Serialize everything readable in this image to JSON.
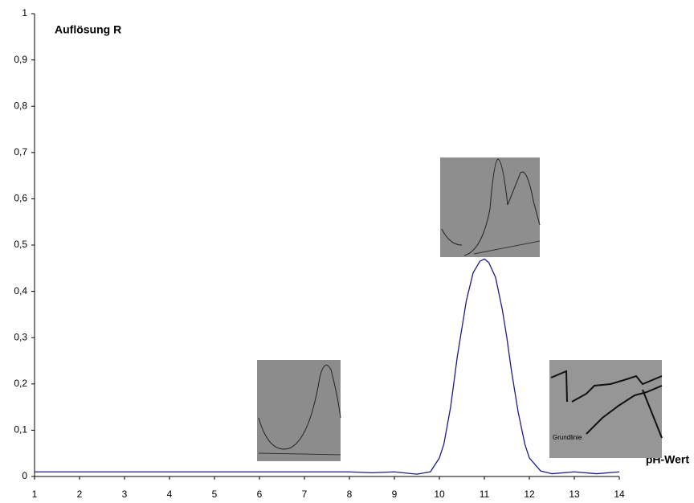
{
  "chart_data": {
    "type": "line",
    "y_label": "Auflösung R",
    "x_label": "pH-Wert",
    "x": [
      1,
      2,
      3,
      4,
      5,
      6,
      7,
      8,
      8.5,
      9,
      9.5,
      9.8,
      10,
      10.1,
      10.25,
      10.4,
      10.5,
      10.6,
      10.75,
      10.9,
      11,
      11.1,
      11.25,
      11.4,
      11.5,
      11.6,
      11.75,
      11.9,
      12,
      12.25,
      12.5,
      13,
      13.5,
      14
    ],
    "values": [
      0.01,
      0.01,
      0.01,
      0.01,
      0.01,
      0.01,
      0.01,
      0.01,
      0.008,
      0.01,
      0.005,
      0.01,
      0.04,
      0.07,
      0.15,
      0.26,
      0.32,
      0.38,
      0.44,
      0.465,
      0.47,
      0.462,
      0.43,
      0.36,
      0.3,
      0.23,
      0.14,
      0.07,
      0.04,
      0.012,
      0.006,
      0.01,
      0.006,
      0.01
    ],
    "color": "#1c1c8a",
    "xlim": [
      1,
      14
    ],
    "ylim": [
      0,
      1
    ],
    "xticks": [
      1,
      2,
      3,
      4,
      5,
      6,
      7,
      8,
      9,
      10,
      11,
      12,
      13,
      14
    ],
    "yticks": [
      0,
      {
        "value": 0.1,
        "label": "0,1"
      },
      {
        "value": 0.2,
        "label": "0,2"
      },
      {
        "value": 0.3,
        "label": "0,3"
      },
      {
        "value": 0.4,
        "label": "0,4"
      },
      {
        "value": 0.5,
        "label": "0,5"
      },
      {
        "value": 0.6,
        "label": "0,6"
      },
      {
        "value": 0.7,
        "label": "0,7"
      },
      {
        "value": 0.8,
        "label": "0,8"
      },
      {
        "value": 0.9,
        "label": "0,9"
      },
      1
    ],
    "annotations": [
      "Grundlinie"
    ]
  }
}
